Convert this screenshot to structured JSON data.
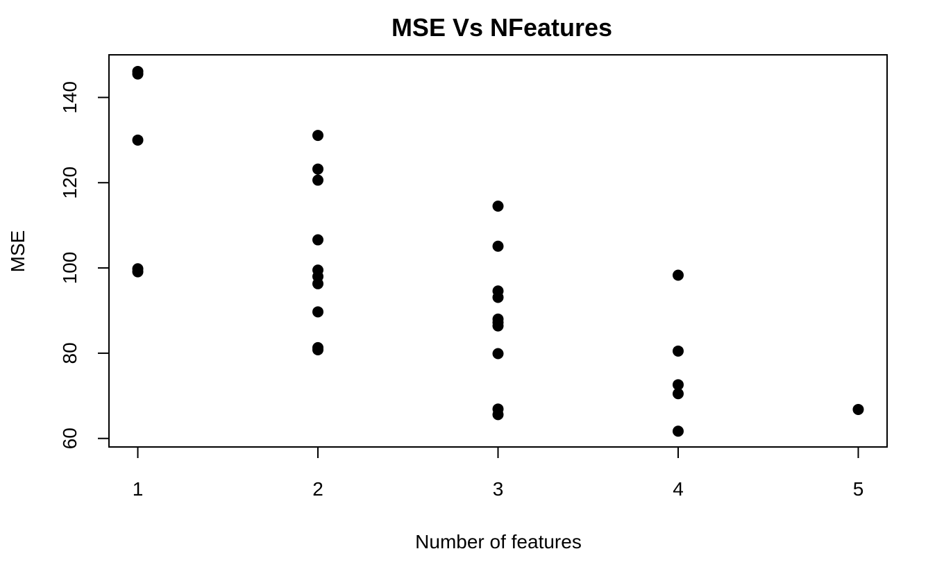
{
  "chart_data": {
    "type": "scatter",
    "title": "MSE Vs NFeatures",
    "xlabel": "Number of features",
    "ylabel": "MSE",
    "xlim": [
      0.84,
      5.16
    ],
    "ylim": [
      58,
      150
    ],
    "xticks": [
      "1",
      "2",
      "3",
      "4",
      "5"
    ],
    "yticks": [
      "60",
      "80",
      "100",
      "120",
      "140"
    ],
    "grid": false,
    "legend": "none",
    "point_color": "#000000",
    "points": [
      {
        "x": 1,
        "y": 146.1
      },
      {
        "x": 1,
        "y": 145.5
      },
      {
        "x": 1,
        "y": 130.0
      },
      {
        "x": 1,
        "y": 99.8
      },
      {
        "x": 1,
        "y": 99.1
      },
      {
        "x": 2,
        "y": 131.1
      },
      {
        "x": 2,
        "y": 123.2
      },
      {
        "x": 2,
        "y": 120.6
      },
      {
        "x": 2,
        "y": 106.6
      },
      {
        "x": 2,
        "y": 99.5
      },
      {
        "x": 2,
        "y": 98.0
      },
      {
        "x": 2,
        "y": 96.3
      },
      {
        "x": 2,
        "y": 89.7
      },
      {
        "x": 2,
        "y": 81.3
      },
      {
        "x": 2,
        "y": 80.8
      },
      {
        "x": 3,
        "y": 114.5
      },
      {
        "x": 3,
        "y": 105.1
      },
      {
        "x": 3,
        "y": 94.6
      },
      {
        "x": 3,
        "y": 93.1
      },
      {
        "x": 3,
        "y": 88.0
      },
      {
        "x": 3,
        "y": 87.2
      },
      {
        "x": 3,
        "y": 86.4
      },
      {
        "x": 3,
        "y": 79.9
      },
      {
        "x": 3,
        "y": 66.9
      },
      {
        "x": 3,
        "y": 65.6
      },
      {
        "x": 4,
        "y": 98.3
      },
      {
        "x": 4,
        "y": 80.5
      },
      {
        "x": 4,
        "y": 72.6
      },
      {
        "x": 4,
        "y": 70.5
      },
      {
        "x": 4,
        "y": 61.7
      },
      {
        "x": 5,
        "y": 66.8
      }
    ]
  }
}
